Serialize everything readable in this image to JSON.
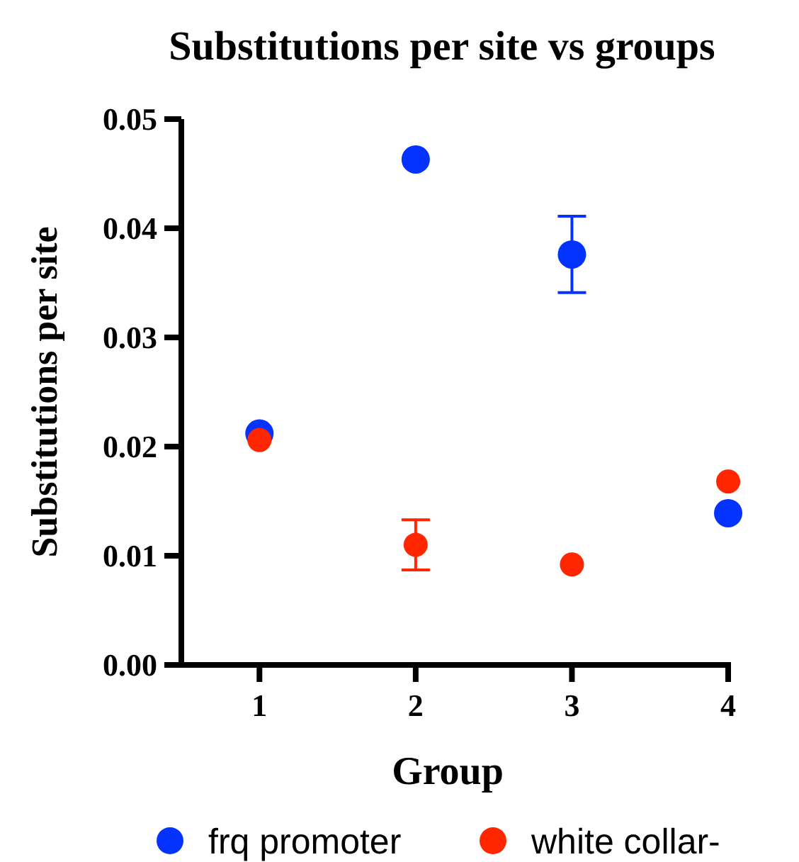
{
  "chart_data": {
    "type": "scatter",
    "title": "Substitutions per site vs groups",
    "xlabel": "Group",
    "ylabel": "Substitutions  per  site",
    "x": [
      1,
      2,
      3,
      4
    ],
    "xlim": [
      0.5,
      4
    ],
    "xticks": [
      1,
      2,
      3,
      4
    ],
    "ylim": [
      0,
      0.05
    ],
    "yticks": [
      {
        "value": 0,
        "label": "0.00"
      },
      {
        "value": 0.01,
        "label": "0.01"
      },
      {
        "value": 0.02,
        "label": "0.02"
      },
      {
        "value": 0.03,
        "label": "0.03"
      },
      {
        "value": 0.04,
        "label": "0.04"
      },
      {
        "value": 0.05,
        "label": "0.05"
      }
    ],
    "series": [
      {
        "name": "frq promoter",
        "color": "#0433ff",
        "values": [
          0.0212,
          0.0463,
          0.0376,
          0.0139
        ],
        "errors": [
          null,
          null,
          [
            0.0341,
            0.0411
          ],
          null
        ]
      },
      {
        "name": "white collar-",
        "color": "#ff2600",
        "values": [
          0.0206,
          0.011,
          0.0092,
          0.0168
        ],
        "errors": [
          null,
          [
            0.0087,
            0.0133
          ],
          null,
          null
        ]
      }
    ],
    "marker": "circle",
    "legend": "bottom",
    "grid": false
  }
}
